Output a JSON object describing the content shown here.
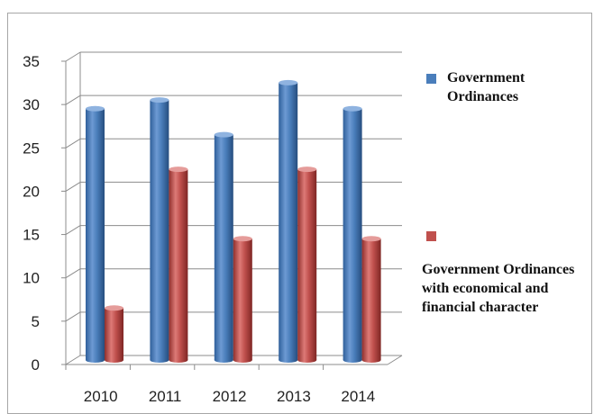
{
  "chart_data": {
    "type": "bar",
    "categories": [
      "2010",
      "2011",
      "2012",
      "2013",
      "2014"
    ],
    "series": [
      {
        "name": "Government Ordinances",
        "values": [
          29,
          30,
          26,
          32,
          29
        ],
        "color": "#4a7ebb"
      },
      {
        "name": "Government Ordinances with economical and financial character",
        "values": [
          6,
          22,
          14,
          22,
          14
        ],
        "color": "#c0504d"
      }
    ],
    "ylim": [
      0,
      35
    ],
    "yticks": [
      0,
      5,
      10,
      15,
      20,
      25,
      30,
      35
    ],
    "grid": true,
    "legend_position": "right",
    "style": "3d-cylinder"
  }
}
